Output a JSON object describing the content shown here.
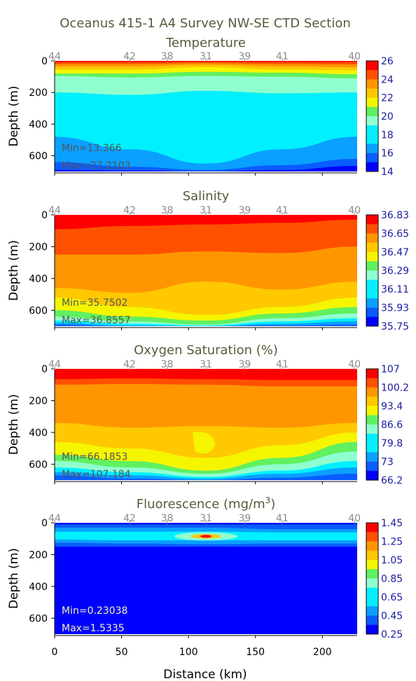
{
  "figure_title": "Oceanus 415-1 A4 Survey NW-SE CTD Section",
  "shared_x": {
    "label": "Distance (km)",
    "range": [
      0,
      226
    ],
    "ticks": [
      0,
      50,
      100,
      150,
      200
    ],
    "stations": [
      {
        "label": "44",
        "km": 0
      },
      {
        "label": "42",
        "km": 56
      },
      {
        "label": "38",
        "km": 84
      },
      {
        "label": "31",
        "km": 113
      },
      {
        "label": "39",
        "km": 142
      },
      {
        "label": "41",
        "km": 170
      },
      {
        "label": "40",
        "km": 224
      }
    ]
  },
  "chart_data": [
    {
      "type": "heatmap",
      "title": "Temperature",
      "ylabel": "Depth (m)",
      "ylim": [
        0,
        700
      ],
      "y_inverted": true,
      "yticks": [
        0,
        200,
        400,
        600
      ],
      "colorbar": [
        "26",
        "24",
        "22",
        "20",
        "18",
        "16",
        "14"
      ],
      "colorbar_range": [
        14,
        26
      ],
      "min_text": "Min=13.366",
      "max_text": "Max=27.2103",
      "min_color": "#555555"
    },
    {
      "type": "heatmap",
      "title": "Salinity",
      "ylabel": "Depth (m)",
      "ylim": [
        0,
        700
      ],
      "y_inverted": true,
      "yticks": [
        0,
        200,
        400,
        600
      ],
      "colorbar": [
        "36.83",
        "36.65",
        "36.47",
        "36.29",
        "36.11",
        "35.93",
        "35.75"
      ],
      "colorbar_range": [
        35.75,
        36.83
      ],
      "min_text": "Min=35.7502",
      "max_text": "Max=36.8557",
      "min_color": "#555555"
    },
    {
      "type": "heatmap",
      "title": "Oxygen Saturation (%)",
      "ylabel": "Depth (m)",
      "ylim": [
        0,
        700
      ],
      "y_inverted": true,
      "yticks": [
        0,
        200,
        400,
        600
      ],
      "colorbar": [
        "107",
        "100.2",
        "93.4",
        "86.6",
        "79.8",
        "73",
        "66.2"
      ],
      "colorbar_range": [
        66.2,
        107
      ],
      "min_text": "Min=66.1853",
      "max_text": "Max=107.184",
      "min_color": "#555555"
    },
    {
      "type": "heatmap",
      "title": "Fluorescence (mg/m",
      "title_sup": "3",
      "title_tail": ")",
      "ylabel": "Depth (m)",
      "ylim": [
        0,
        700
      ],
      "y_inverted": true,
      "yticks": [
        0,
        200,
        400,
        600
      ],
      "colorbar": [
        "1.45",
        "1.25",
        "1.05",
        "0.85",
        "0.65",
        "0.45",
        "0.25"
      ],
      "colorbar_range": [
        0.25,
        1.45
      ],
      "min_text": "Min=0.23038",
      "max_text": "Max=1.5335",
      "min_color": "#f0f0b0"
    }
  ],
  "colors": {
    "scale": [
      "#0000ff",
      "#0a5cff",
      "#0aa0ff",
      "#00f0ff",
      "#90ffd0",
      "#60f060",
      "#f5f500",
      "#ffc800",
      "#ff9600",
      "#ff5000",
      "#ff0000"
    ]
  }
}
